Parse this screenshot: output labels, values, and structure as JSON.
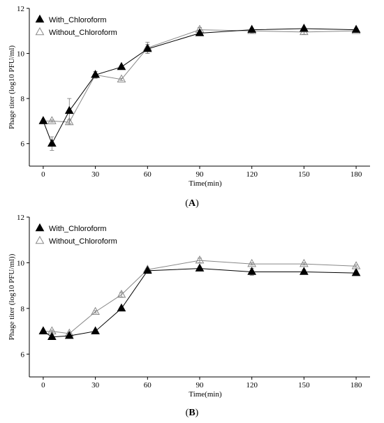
{
  "chart_data": [
    {
      "type": "line",
      "panel_label": "A",
      "xlabel": "Time(min)",
      "ylabel": "Phage titer (log10 PFU/ml)",
      "xlim": [
        -8,
        188
      ],
      "ylim": [
        5,
        12
      ],
      "xticks": [
        0,
        30,
        60,
        90,
        120,
        150,
        180
      ],
      "yticks": [
        6,
        8,
        10,
        12
      ],
      "legend_position": "top-left",
      "series": [
        {
          "name": "With_Chloroform",
          "marker": "filled-triangle",
          "color": "#000000",
          "x": [
            0,
            5,
            15,
            30,
            45,
            60,
            90,
            120,
            150,
            180
          ],
          "y": [
            7.0,
            6.0,
            7.45,
            9.05,
            9.4,
            10.2,
            10.9,
            11.05,
            11.1,
            11.05
          ],
          "err": [
            0,
            0.3,
            0.55,
            0.15,
            0.05,
            0.2,
            0.1,
            0.05,
            0.05,
            0.05
          ]
        },
        {
          "name": "Without_Chloroform",
          "marker": "open-triangle",
          "color": "#888888",
          "x": [
            0,
            5,
            15,
            30,
            45,
            60,
            90,
            120,
            150,
            180
          ],
          "y": [
            7.0,
            7.0,
            6.95,
            9.05,
            8.85,
            10.25,
            11.05,
            11.0,
            10.95,
            11.0
          ],
          "err": [
            0,
            0.05,
            0.1,
            0.15,
            0.05,
            0.25,
            0.1,
            0.1,
            0.1,
            0.05
          ]
        }
      ]
    },
    {
      "type": "line",
      "panel_label": "B",
      "xlabel": "Time(min)",
      "ylabel": "Phage titer (log10 PFU/ml))",
      "xlim": [
        -8,
        188
      ],
      "ylim": [
        5,
        12
      ],
      "xticks": [
        0,
        30,
        60,
        90,
        120,
        150,
        180
      ],
      "yticks": [
        6,
        8,
        10,
        12
      ],
      "legend_position": "top-left",
      "series": [
        {
          "name": "With_Chloroform",
          "marker": "filled-triangle",
          "color": "#000000",
          "x": [
            0,
            5,
            15,
            30,
            45,
            60,
            90,
            120,
            150,
            180
          ],
          "y": [
            7.0,
            6.75,
            6.8,
            7.0,
            8.0,
            9.65,
            9.75,
            9.6,
            9.6,
            9.55
          ],
          "err": [
            0,
            0.05,
            0.05,
            0.05,
            0.05,
            0.05,
            0.05,
            0.15,
            0.1,
            0.1
          ]
        },
        {
          "name": "Without_Chloroform",
          "marker": "open-triangle",
          "color": "#888888",
          "x": [
            0,
            5,
            15,
            30,
            45,
            60,
            90,
            120,
            150,
            180
          ],
          "y": [
            7.0,
            7.0,
            6.9,
            7.85,
            8.6,
            9.7,
            10.1,
            9.95,
            9.95,
            9.85
          ],
          "err": [
            0,
            0.05,
            0.05,
            0.05,
            0.1,
            0.05,
            0.1,
            0.05,
            0.05,
            0.05
          ]
        }
      ]
    }
  ]
}
